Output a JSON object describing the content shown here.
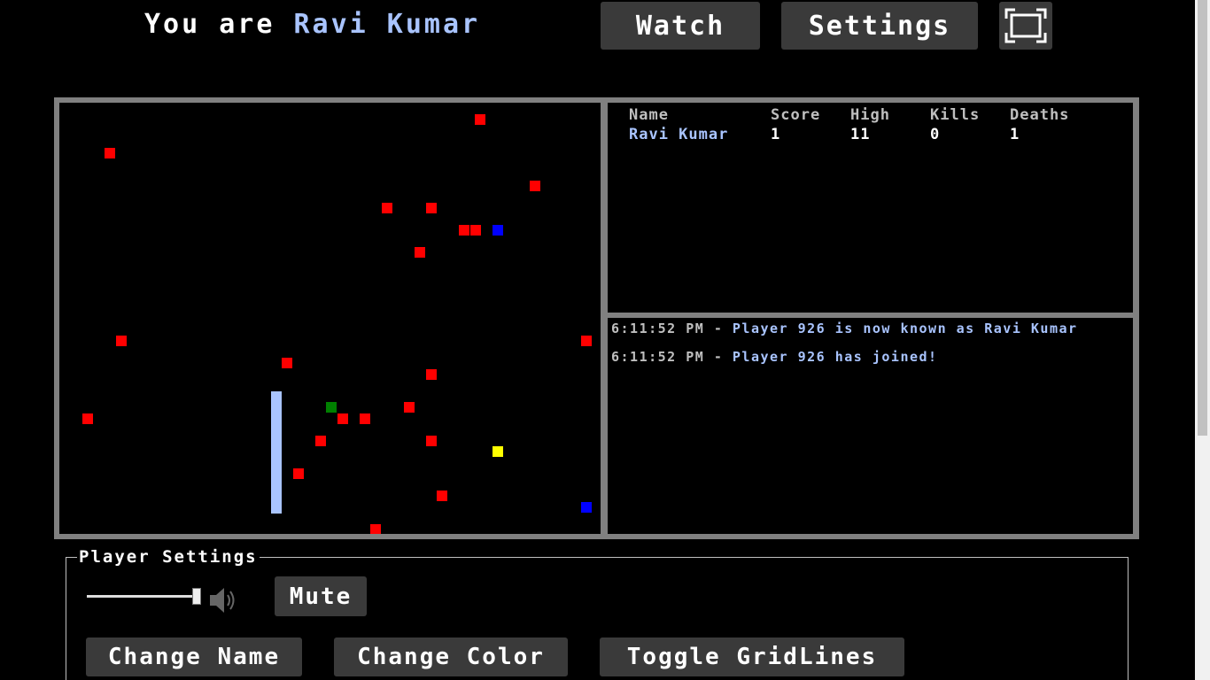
{
  "header": {
    "prefix": "You are",
    "player_name": "Ravi Kumar",
    "watch_label": "Watch",
    "settings_label": "Settings",
    "fullscreen_icon": "fullscreen-icon"
  },
  "colors": {
    "food": "#ff0000",
    "player_snake": "#a9c4ff",
    "blue_item": "#0000ff",
    "green_item": "#008000",
    "yellow_item": "#ffff00",
    "frame": "#808080"
  },
  "scoreboard": {
    "headers": [
      "Name",
      "Score",
      "High",
      "Kills",
      "Deaths"
    ],
    "rows": [
      {
        "name": "Ravi Kumar",
        "score": "1",
        "high": "11",
        "kills": "0",
        "deaths": "1"
      }
    ]
  },
  "chat": [
    {
      "time": "6:11:52 PM",
      "message": "Player 926 is now known as Ravi Kumar"
    },
    {
      "time": "6:11:52 PM",
      "message": "Player 926 has joined!"
    }
  ],
  "player_settings": {
    "legend": "Player Settings",
    "volume_level": 0.95,
    "mute_label": "Mute",
    "change_name_label": "Change Name",
    "change_color_label": "Change Color",
    "toggle_gridlines_label": "Toggle GridLines"
  }
}
